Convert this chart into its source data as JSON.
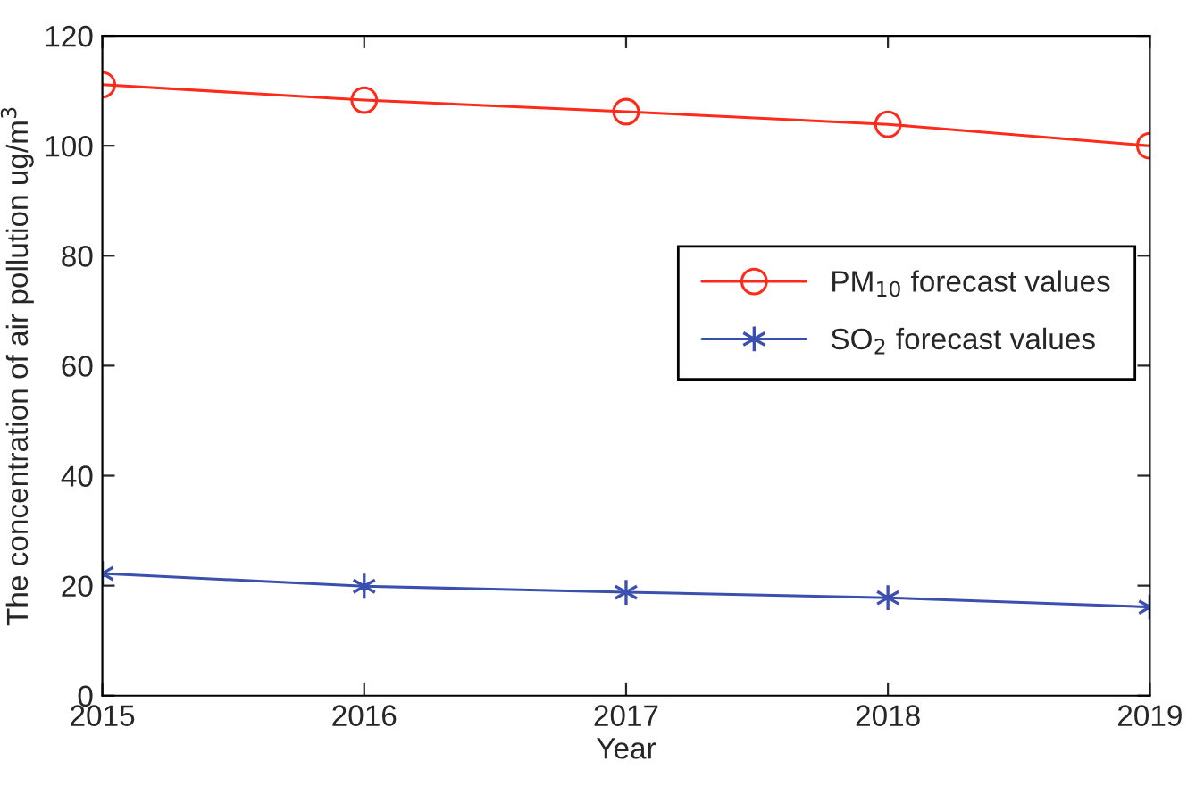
{
  "chart_data": {
    "type": "line",
    "xlabel": "Year",
    "ylabel": "The concentration of air pollution ug/m$^{3}$",
    "x": [
      2015,
      2016,
      2017,
      2018,
      2019
    ],
    "series": [
      {
        "name": "PM$_{10}$ forecast values",
        "color": "#ff2a1a",
        "marker": "circle",
        "values": [
          111.1,
          108.3,
          106.2,
          103.9,
          100
        ]
      },
      {
        "name": "SO$_{2}$ forecast values",
        "color": "#3b4fae",
        "marker": "cross",
        "values": [
          22.2,
          19.9,
          18.8,
          17.8,
          16.1
        ]
      }
    ],
    "xlim": [
      2015,
      2019
    ],
    "xticks": [
      2015,
      2016,
      2017,
      2018,
      2019
    ],
    "ylim": [
      0,
      120
    ],
    "yticks": [
      0,
      20,
      40,
      60,
      80,
      100,
      120
    ],
    "grid": false,
    "legend": "right",
    "line_style": "solid"
  }
}
